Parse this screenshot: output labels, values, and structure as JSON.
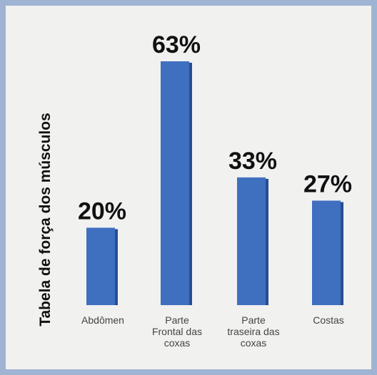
{
  "chart_data": {
    "type": "bar",
    "title": "",
    "xlabel": "",
    "ylabel": "Tabela de força dos músculos",
    "categories": [
      [
        "Abdômen"
      ],
      [
        "Parte",
        "Frontal das",
        "coxas"
      ],
      [
        "Parte",
        "traseira das",
        "coxas"
      ],
      [
        "Costas"
      ]
    ],
    "values": [
      20,
      63,
      33,
      27
    ],
    "value_labels": [
      "20%",
      "63%",
      "33%",
      "27%"
    ],
    "ylim": [
      0,
      63
    ],
    "grid": false,
    "legend": "none",
    "colors": {
      "bar": "#3f6fbf",
      "bar_shade": "#274e95",
      "frame": "#9fb4d3",
      "background": "#f1f1f0"
    }
  }
}
